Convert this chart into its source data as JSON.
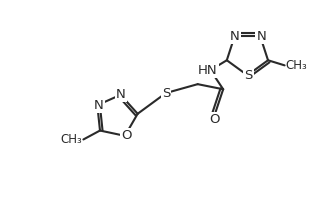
{
  "bg_color": "#ffffff",
  "line_color": "#2a2a2a",
  "line_width": 1.5,
  "font_size": 9.5,
  "fig_width": 3.31,
  "fig_height": 2.02,
  "dpi": 100,
  "xlim": [
    0,
    10
  ],
  "ylim": [
    0,
    6.1
  ]
}
